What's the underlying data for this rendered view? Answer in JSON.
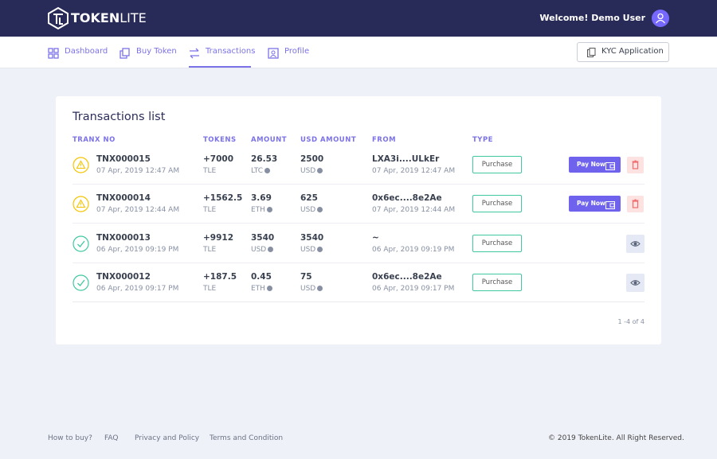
{
  "header": {
    "logo": [
      "TOKEN",
      "LITE"
    ],
    "welcome": "Welcome! Demo User"
  },
  "nav": {
    "items": [
      "Dashboard",
      "Buy Token",
      "Transactions",
      "Profile"
    ],
    "active": 2,
    "kyc": "KYC Application"
  },
  "card": {
    "title": "Transactions list",
    "columns": [
      "TRANX NO",
      "TOKENS",
      "AMOUNT",
      "USD AMOUNT",
      "FROM",
      "TYPE"
    ],
    "rows": [
      {
        "id": "TNX000015",
        "date": "07 Apr, 2019 12:47 AM",
        "tokens": "+7000",
        "token_unit": "TLE",
        "amount": 26.53,
        "amount_unit": "LTC",
        "usd": 2500,
        "usd_unit": "USD",
        "from": "LXA3i....ULkEr",
        "from_date": "07 Apr, 2019 12:47 AM",
        "type": "Purchase",
        "pay": "Pay Now"
      },
      {
        "id": "TNX000014",
        "date": "07 Apr, 2019 12:44 AM",
        "tokens": "+1562.5",
        "token_unit": "TLE",
        "amount": 3.69,
        "amount_unit": "ETH",
        "usd": 625,
        "usd_unit": "USD",
        "from": "0x6ec....8e2Ae",
        "from_date": "07 Apr, 2019 12:44 AM",
        "type": "Purchase",
        "pay": "Pay Now"
      },
      {
        "id": "TNX000013",
        "date": "06 Apr, 2019 09:19 PM",
        "tokens": "+9912",
        "token_unit": "TLE",
        "amount": 3540,
        "amount_unit": "USD",
        "usd": 3540,
        "usd_unit": "USD",
        "from": "~",
        "from_date": "06 Apr, 2019 09:19 PM",
        "type": "Purchase"
      },
      {
        "id": "TNX000012",
        "date": "06 Apr, 2019 09:17 PM",
        "tokens": "+187.5",
        "token_unit": "TLE",
        "amount": 0.45,
        "amount_unit": "ETH",
        "usd": 75,
        "usd_unit": "USD",
        "from": "0x6ec....8e2Ae",
        "from_date": "06 Apr, 2019 09:17 PM",
        "type": "Purchase"
      }
    ],
    "pagination": "1 -4 of 4"
  },
  "footer": {
    "links": [
      "How to buy?",
      "FAQ",
      "Privacy and Policy",
      "Terms and Condition"
    ],
    "copyright": "© 2019 TokenLite. All Right Reserved."
  }
}
